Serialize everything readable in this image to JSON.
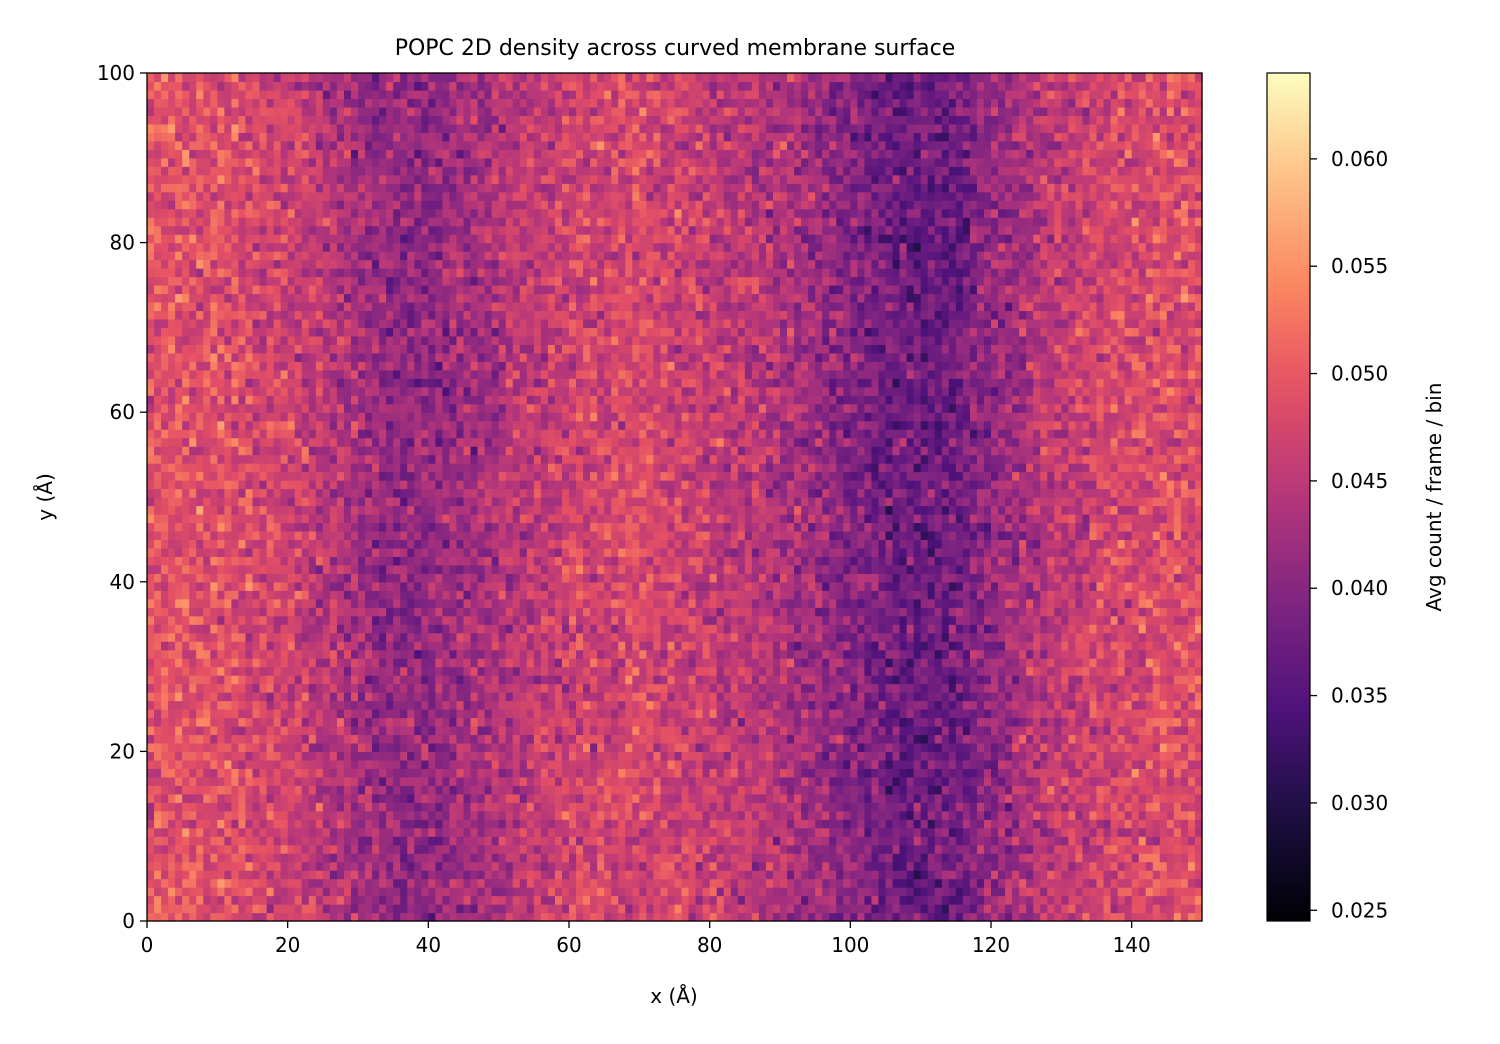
{
  "chart_data": {
    "type": "heatmap",
    "title": "POPC 2D density across curved membrane surface",
    "xlabel": "x (Å)",
    "ylabel": "y (Å)",
    "xlim": [
      0,
      150
    ],
    "ylim": [
      0,
      100
    ],
    "xticks": [
      0,
      20,
      40,
      60,
      80,
      100,
      120,
      140
    ],
    "yticks": [
      0,
      20,
      40,
      60,
      80,
      100
    ],
    "bins": {
      "nx": 150,
      "ny": 100
    },
    "colormap": "magma",
    "colorbar": {
      "label": "Avg count / frame / bin",
      "range": [
        0.0245,
        0.064
      ],
      "ticks": [
        "0.025",
        "0.030",
        "0.035",
        "0.040",
        "0.045",
        "0.050",
        "0.055",
        "0.060"
      ]
    },
    "density_profile": {
      "description_of_values": "approximate column-mean density along x (Å); individual bins fluctuate ±0.006 around this mean",
      "x": [
        0,
        10,
        20,
        30,
        35,
        40,
        50,
        60,
        70,
        80,
        90,
        100,
        105,
        110,
        115,
        120,
        130,
        140,
        150
      ],
      "mean": [
        0.049,
        0.049,
        0.047,
        0.043,
        0.041,
        0.041,
        0.044,
        0.047,
        0.048,
        0.046,
        0.044,
        0.04,
        0.038,
        0.037,
        0.038,
        0.041,
        0.046,
        0.048,
        0.049
      ]
    },
    "grid": false,
    "legend": "colorbar-right"
  }
}
